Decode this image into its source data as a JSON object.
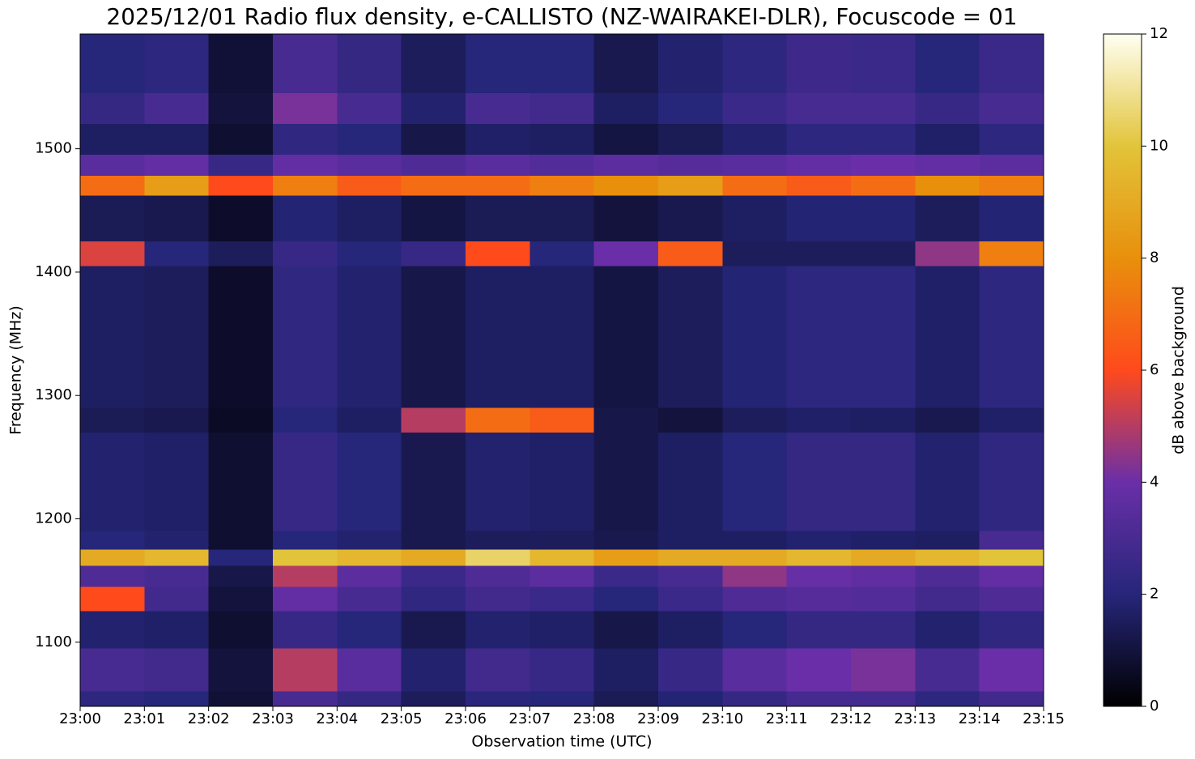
{
  "chart_data": {
    "type": "heatmap",
    "title": "2025/12/01 Radio flux density, e-CALLISTO (NZ-WAIRAKEI-DLR), Focuscode = 01",
    "x_label": "Observation time (UTC)",
    "y_label": "Frequency (MHz)",
    "colorbar_label": "dB above background",
    "xlim": [
      1380,
      1395
    ],
    "ylim": [
      1048,
      1593
    ],
    "xticks": [
      {
        "value": 1380,
        "label": "23:00"
      },
      {
        "value": 1381,
        "label": "23:01"
      },
      {
        "value": 1382,
        "label": "23:02"
      },
      {
        "value": 1383,
        "label": "23:03"
      },
      {
        "value": 1384,
        "label": "23:04"
      },
      {
        "value": 1385,
        "label": "23:05"
      },
      {
        "value": 1386,
        "label": "23:06"
      },
      {
        "value": 1387,
        "label": "23:07"
      },
      {
        "value": 1388,
        "label": "23:08"
      },
      {
        "value": 1389,
        "label": "23:09"
      },
      {
        "value": 1390,
        "label": "23:10"
      },
      {
        "value": 1391,
        "label": "23:11"
      },
      {
        "value": 1392,
        "label": "23:12"
      },
      {
        "value": 1393,
        "label": "23:13"
      },
      {
        "value": 1394,
        "label": "23:14"
      },
      {
        "value": 1395,
        "label": "23:15"
      }
    ],
    "yticks": [
      1100,
      1200,
      1300,
      1400,
      1500
    ],
    "clim": [
      0,
      12
    ],
    "cticks": [
      0,
      2,
      4,
      6,
      8,
      10,
      12
    ],
    "colorscale": [
      "#000000",
      "#26267a",
      "#6a2fa8",
      "#ff4a1c",
      "#e8900c",
      "#e2c43a",
      "#fffff2"
    ],
    "x_bins": [
      1380,
      1381,
      1382,
      1383,
      1384,
      1385,
      1386,
      1387,
      1388,
      1389,
      1390,
      1391,
      1392,
      1393,
      1394,
      1395
    ],
    "y_bins": [
      1048,
      1060,
      1095,
      1125,
      1145,
      1162,
      1175,
      1190,
      1270,
      1290,
      1405,
      1425,
      1462,
      1478,
      1495,
      1520,
      1545,
      1593
    ],
    "z": [
      [
        2.2,
        2.0,
        0.9,
        3.0,
        2.4,
        1.5,
        2.1,
        2.0,
        1.4,
        1.9,
        2.4,
        2.9,
        2.9,
        2.2,
        2.8
      ],
      [
        3.0,
        2.8,
        1.0,
        5.0,
        3.5,
        1.8,
        2.8,
        2.5,
        1.6,
        2.5,
        3.5,
        4.0,
        4.2,
        3.0,
        4.0
      ],
      [
        1.8,
        1.7,
        0.8,
        2.5,
        2.0,
        1.3,
        1.8,
        1.7,
        1.2,
        1.6,
        2.0,
        2.4,
        2.4,
        1.8,
        2.3
      ],
      [
        6.0,
        2.8,
        1.0,
        3.8,
        3.0,
        2.3,
        2.8,
        2.6,
        2.0,
        2.6,
        3.2,
        3.4,
        3.3,
        2.8,
        3.2
      ],
      [
        3.2,
        3.0,
        1.2,
        5.0,
        3.6,
        2.6,
        3.2,
        3.6,
        2.6,
        3.0,
        4.5,
        3.9,
        3.7,
        3.2,
        3.8
      ],
      [
        9.0,
        9.5,
        2.0,
        10.0,
        9.5,
        9.0,
        10.5,
        9.5,
        8.5,
        9.0,
        9.0,
        9.5,
        9.0,
        9.5,
        10.0
      ],
      [
        2.0,
        1.8,
        0.8,
        2.0,
        1.8,
        1.3,
        1.5,
        1.5,
        1.3,
        1.6,
        1.6,
        1.8,
        1.7,
        1.6,
        3.0
      ],
      [
        1.8,
        1.7,
        0.8,
        2.5,
        2.0,
        1.3,
        1.8,
        1.7,
        1.2,
        1.6,
        2.0,
        2.4,
        2.4,
        1.8,
        2.3
      ],
      [
        1.4,
        1.3,
        0.6,
        2.0,
        1.6,
        5.0,
        7.0,
        6.5,
        1.2,
        1.0,
        1.5,
        1.7,
        1.6,
        1.3,
        1.7
      ],
      [
        1.6,
        1.5,
        0.7,
        2.3,
        1.8,
        1.2,
        1.6,
        1.6,
        1.1,
        1.5,
        1.9,
        2.2,
        2.2,
        1.7,
        2.2
      ],
      [
        5.5,
        2.0,
        1.5,
        2.5,
        2.0,
        2.5,
        6.0,
        2.0,
        4.0,
        6.5,
        1.5,
        1.5,
        1.5,
        4.5,
        7.5
      ],
      [
        1.4,
        1.3,
        0.7,
        1.9,
        1.6,
        1.1,
        1.4,
        1.4,
        1.0,
        1.3,
        1.6,
        1.9,
        1.9,
        1.5,
        1.9
      ],
      [
        7.0,
        8.5,
        6.0,
        7.5,
        6.5,
        7.0,
        7.0,
        7.5,
        8.0,
        8.5,
        7.0,
        6.5,
        7.0,
        8.0,
        7.5
      ],
      [
        3.5,
        3.8,
        2.5,
        3.8,
        3.5,
        3.2,
        3.5,
        3.3,
        3.6,
        3.4,
        3.5,
        3.8,
        4.0,
        3.8,
        3.6
      ],
      [
        1.6,
        1.6,
        0.8,
        2.3,
        2.0,
        1.2,
        1.7,
        1.6,
        1.1,
        1.4,
        1.8,
        2.2,
        2.2,
        1.7,
        2.2
      ],
      [
        2.4,
        3.0,
        1.0,
        4.2,
        3.0,
        1.8,
        3.0,
        2.8,
        1.6,
        2.0,
        2.6,
        3.0,
        3.0,
        2.5,
        3.0
      ],
      [
        2.0,
        2.2,
        0.9,
        3.0,
        2.4,
        1.5,
        2.0,
        2.0,
        1.3,
        1.8,
        2.2,
        2.7,
        2.6,
        2.0,
        2.6
      ]
    ]
  }
}
